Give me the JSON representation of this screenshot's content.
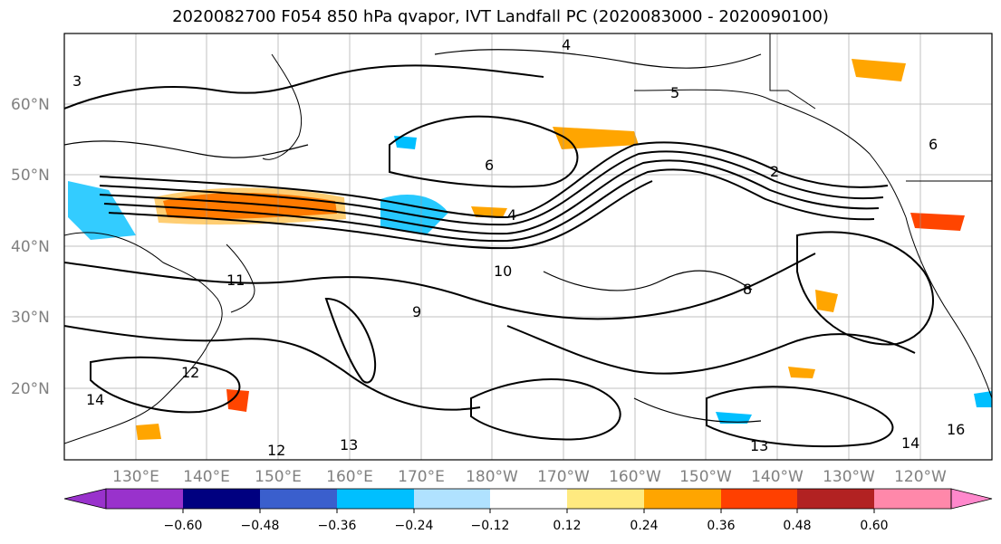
{
  "title": "2020082700 F054 850 hPa qvapor, IVT Landfall PC (2020083000 - 2020090100)",
  "map": {
    "lat_labels": [
      "60°N",
      "50°N",
      "40°N",
      "30°N",
      "20°N"
    ],
    "lon_labels": [
      "130°E",
      "140°E",
      "150°E",
      "160°E",
      "170°E",
      "180°W",
      "170°W",
      "160°W",
      "150°W",
      "140°W",
      "130°W",
      "120°W"
    ],
    "contour_labels": [
      "3",
      "4",
      "5",
      "6",
      "9",
      "10",
      "11",
      "12",
      "13",
      "14",
      "16",
      "8",
      "2"
    ],
    "fill_colors": {
      "dry": "#00bfff",
      "dry_light": "#b0e0ff",
      "moist": "#ffa500",
      "moist_strong": "#ff4500",
      "moist_light": "#ffe680"
    }
  },
  "colorbar": {
    "tick_labels": [
      "−0.60",
      "−0.48",
      "−0.36",
      "−0.24",
      "−0.12",
      "0.12",
      "0.24",
      "0.36",
      "0.48",
      "0.60"
    ],
    "colors": [
      "#9932cc",
      "#000080",
      "#3a5fcd",
      "#00bfff",
      "#b0e2ff",
      "#ffffff",
      "#ffea80",
      "#ffa500",
      "#ff4000",
      "#b22222",
      "#ff88aa",
      "#ff88cc"
    ],
    "under_color": "#9932cc",
    "over_color": "#ff88cc"
  }
}
